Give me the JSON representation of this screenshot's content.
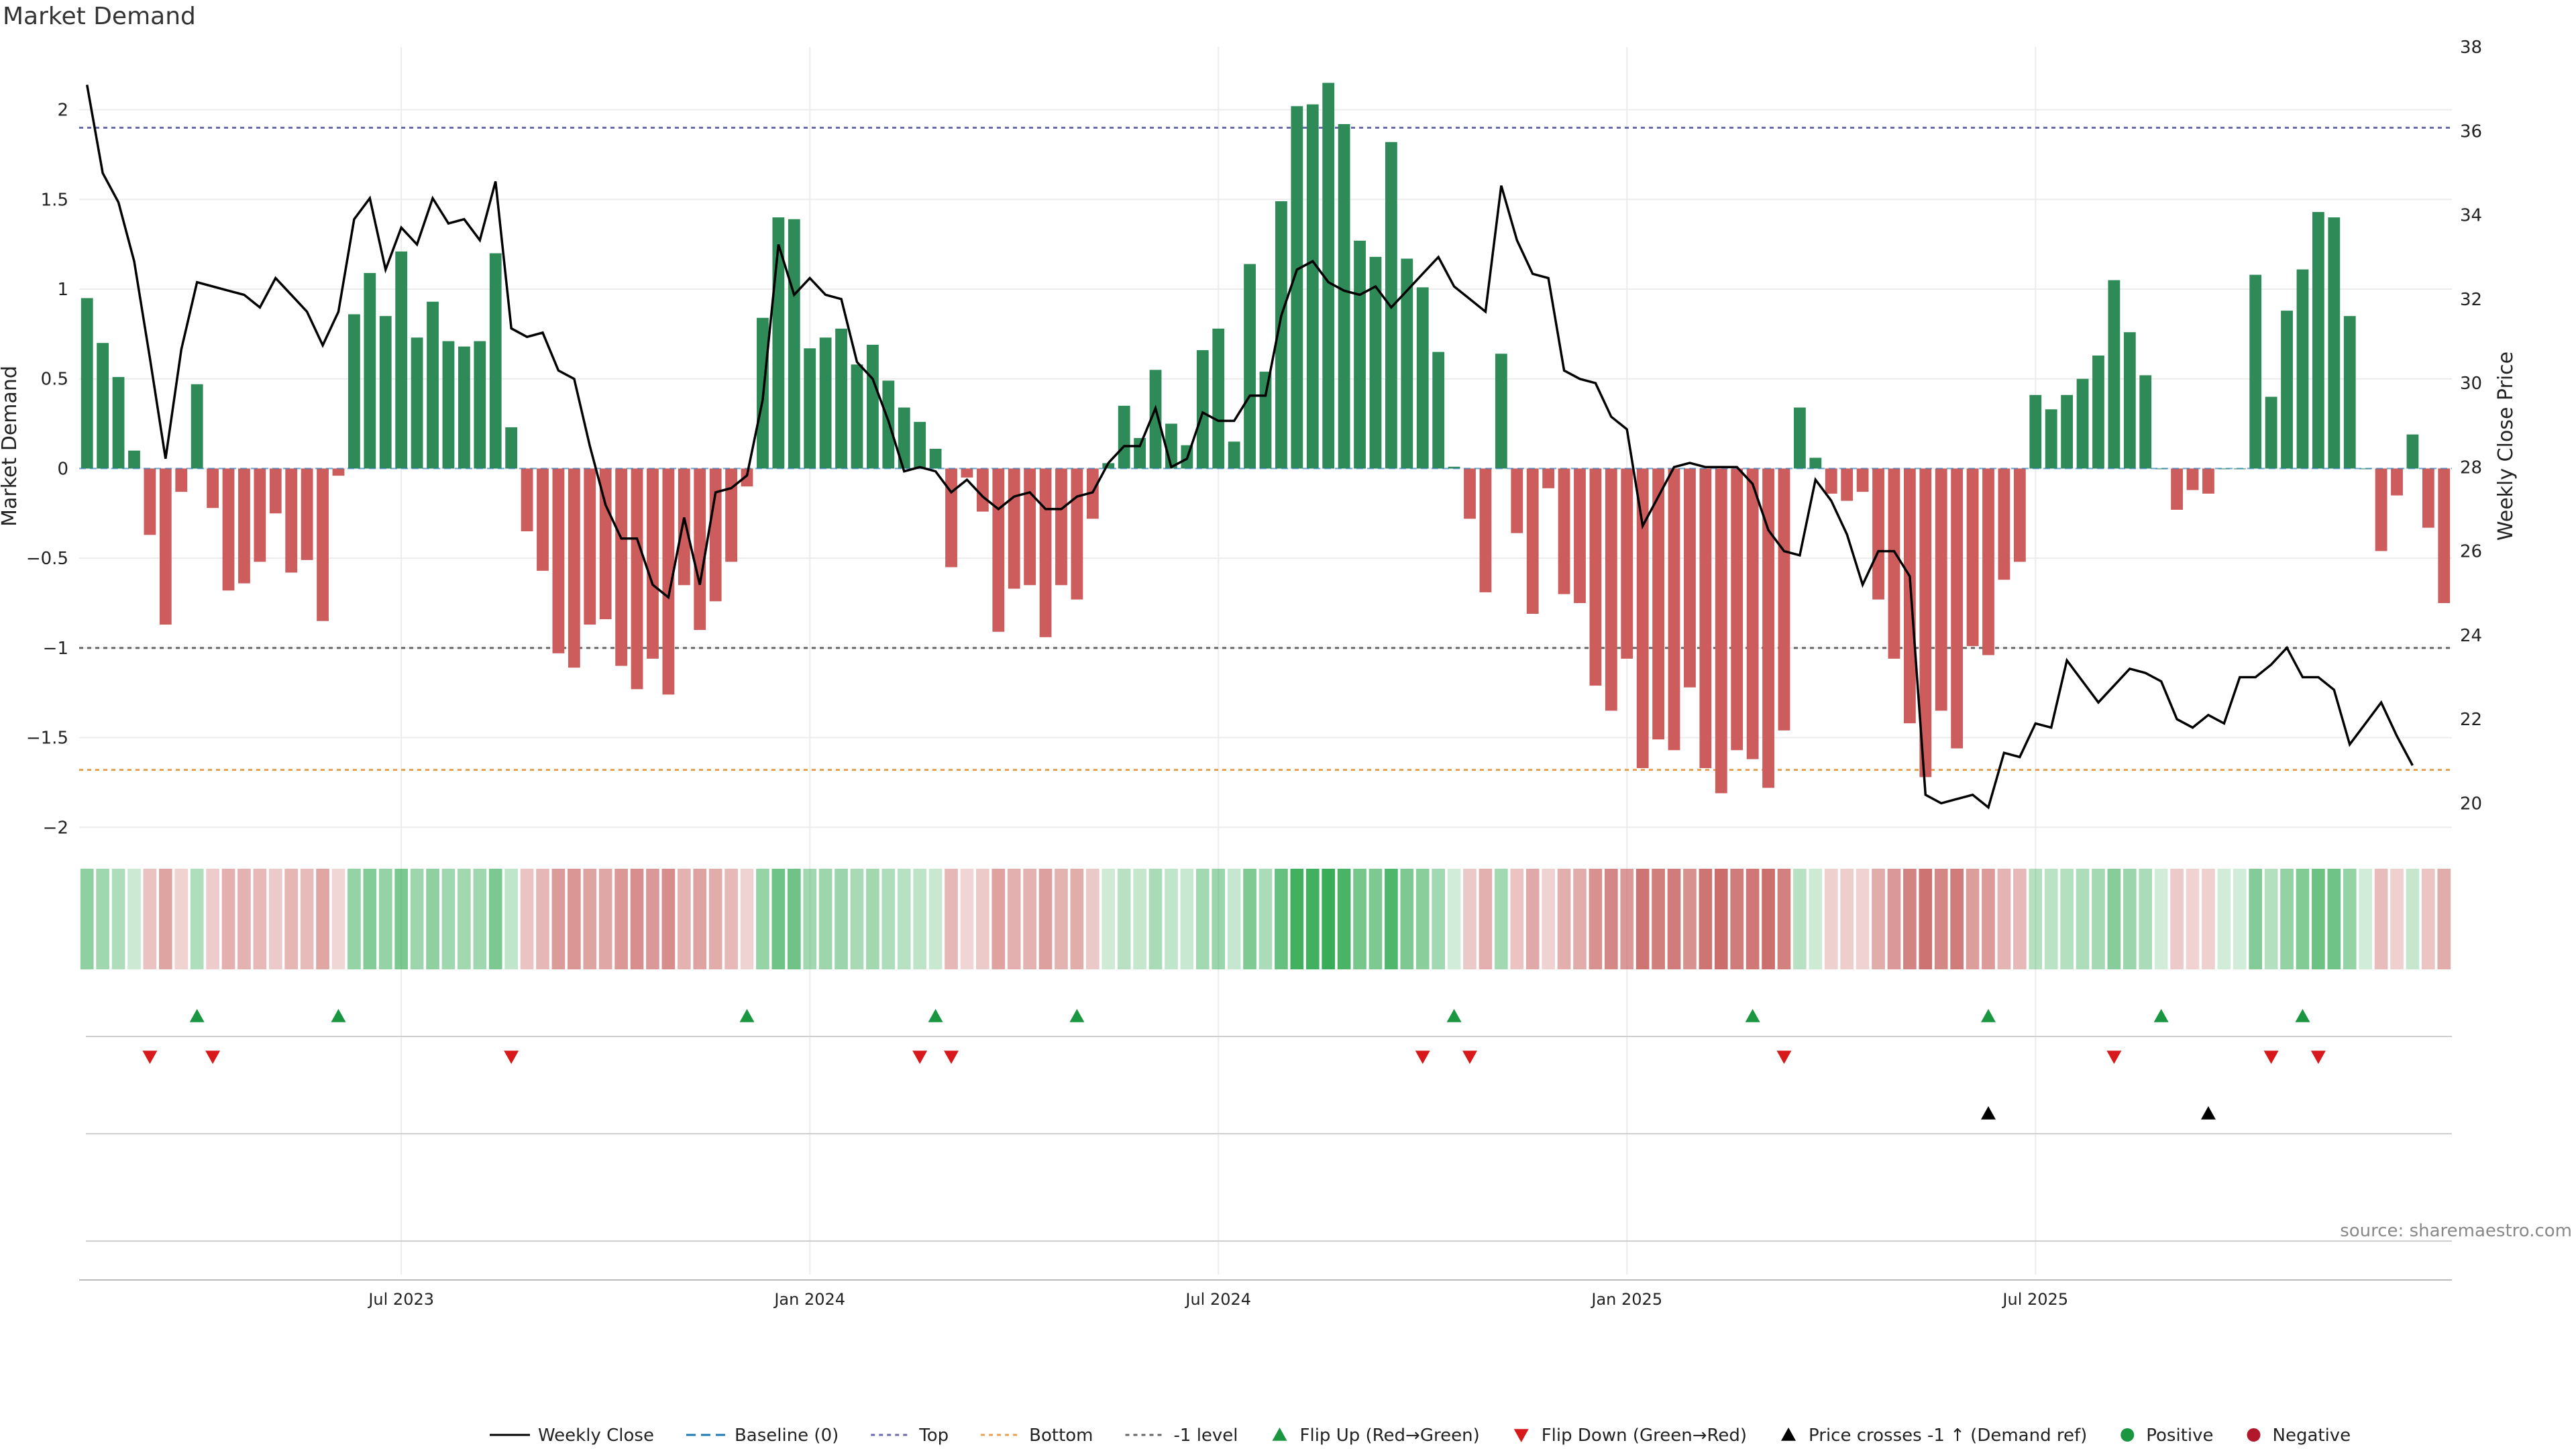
{
  "title": "Market Demand",
  "source": "source: sharemaestro.com",
  "colors": {
    "positive_bar": "#2e8b57",
    "negative_bar": "#cd5c5c",
    "line": "#000000",
    "top_line": "#6a6aa8",
    "bottom_line": "#e8a050",
    "neg1_line": "#666666",
    "flip_up": "#1a9641",
    "flip_down": "#d7191c",
    "cross": "#000000",
    "positive_dot": "#1a9641",
    "negative_dot": "#b2182b"
  },
  "chart_data": {
    "type": "bar",
    "title": "Market Demand",
    "ylabel": "Market Demand",
    "y2label": "Weekly Close Price",
    "ylim": [
      -2.1,
      2.35
    ],
    "y2lim": [
      19,
      38
    ],
    "yticks": [
      "2",
      "1.5",
      "1",
      "0.5",
      "0",
      "−0.5",
      "−1",
      "−1.5",
      "−2"
    ],
    "yticks_values": [
      2,
      1.5,
      1,
      0.5,
      0,
      -0.5,
      -1,
      -1.5,
      -2
    ],
    "y2ticks": [
      "38",
      "36",
      "34",
      "32",
      "30",
      "28",
      "26",
      "24",
      "22",
      "20"
    ],
    "y2ticks_values": [
      38,
      36,
      34,
      32,
      30,
      28,
      26,
      24,
      22,
      20
    ],
    "xticks": [
      "Jul 2023",
      "Jan 2024",
      "Jul 2024",
      "Jan 2025",
      "Jul 2025"
    ],
    "xtick_weeks": [
      20.5,
      46.5,
      72.5,
      98.5,
      124.5
    ],
    "reference_lines": {
      "top": 1.9,
      "bottom": -1.68,
      "neg1": -1.0
    },
    "grid": true,
    "bars": [
      0.95,
      0.7,
      0.51,
      0.1,
      -0.37,
      -0.87,
      -0.13,
      0.47,
      -0.22,
      -0.68,
      -0.64,
      -0.52,
      -0.25,
      -0.58,
      -0.51,
      -0.85,
      -0.04,
      0.86,
      1.09,
      0.85,
      1.21,
      0.73,
      0.93,
      0.71,
      0.68,
      0.71,
      1.2,
      0.23,
      -0.35,
      -0.57,
      -1.03,
      -1.11,
      -0.87,
      -0.84,
      -1.1,
      -1.23,
      -1.06,
      -1.26,
      -0.65,
      -0.9,
      -0.74,
      -0.52,
      -0.1,
      0.84,
      1.4,
      1.39,
      0.67,
      0.73,
      0.78,
      0.58,
      0.69,
      0.49,
      0.34,
      0.26,
      0.11,
      -0.55,
      -0.05,
      -0.24,
      -0.91,
      -0.67,
      -0.65,
      -0.94,
      -0.65,
      -0.73,
      -0.28,
      0.03,
      0.35,
      0.17,
      0.55,
      0.25,
      0.13,
      0.66,
      0.78,
      0.15,
      1.14,
      0.54,
      1.49,
      2.02,
      2.03,
      2.15,
      1.92,
      1.27,
      1.18,
      1.82,
      1.17,
      1.01,
      0.65,
      0.01,
      -0.28,
      -0.69,
      0.64,
      -0.36,
      -0.81,
      -0.11,
      -0.7,
      -0.75,
      -1.21,
      -1.35,
      -1.06,
      -1.67,
      -1.51,
      -1.57,
      -1.22,
      -1.67,
      -1.81,
      -1.57,
      -1.62,
      -1.78,
      -1.46,
      0.34,
      0.06,
      -0.14,
      -0.18,
      -0.13,
      -0.73,
      -1.06,
      -1.42,
      -1.72,
      -1.35,
      -1.56,
      -0.99,
      -1.04,
      -0.62,
      -0.52,
      0.41,
      0.33,
      0.41,
      0.5,
      0.63,
      1.05,
      0.76,
      0.52,
      0.0,
      -0.23,
      -0.12,
      -0.14,
      0.0,
      0.0,
      1.08,
      0.4,
      0.88,
      1.11,
      1.43,
      1.4,
      0.85,
      0.0,
      -0.46,
      -0.15,
      0.19,
      -0.33,
      -0.75
    ],
    "weekly_close": [
      37.1,
      35.0,
      34.3,
      32.9,
      30.6,
      28.2,
      30.8,
      32.4,
      32.3,
      32.2,
      32.1,
      31.8,
      32.5,
      32.1,
      31.7,
      30.9,
      31.7,
      33.9,
      34.4,
      32.7,
      33.7,
      33.3,
      34.4,
      33.8,
      33.9,
      33.4,
      34.8,
      31.3,
      31.1,
      31.2,
      30.3,
      30.1,
      28.5,
      27.1,
      26.3,
      26.3,
      25.2,
      24.9,
      26.8,
      25.2,
      27.4,
      27.5,
      27.8,
      29.6,
      33.3,
      32.1,
      32.5,
      32.1,
      32.0,
      30.5,
      30.1,
      29.1,
      27.9,
      28.0,
      27.9,
      27.4,
      27.7,
      27.3,
      27.0,
      27.3,
      27.4,
      27.0,
      27.0,
      27.3,
      27.4,
      28.1,
      28.5,
      28.5,
      29.4,
      28.0,
      28.2,
      29.3,
      29.1,
      29.1,
      29.7,
      29.7,
      31.6,
      32.7,
      32.9,
      32.4,
      32.2,
      32.1,
      32.3,
      31.8,
      32.2,
      32.6,
      33.0,
      32.3,
      32.0,
      31.7,
      34.7,
      33.4,
      32.6,
      32.5,
      30.3,
      30.1,
      30.0,
      29.2,
      28.9,
      26.6,
      27.3,
      28.0,
      28.1,
      28.0,
      28.0,
      28.0,
      27.6,
      26.5,
      26.0,
      25.9,
      27.7,
      27.2,
      26.4,
      25.2,
      26.0,
      26.0,
      25.4,
      20.2,
      20.0,
      20.1,
      20.2,
      19.9,
      21.2,
      21.1,
      21.9,
      21.8,
      23.4,
      22.9,
      22.4,
      22.8,
      23.2,
      23.1,
      22.9,
      22.0,
      21.8,
      22.1,
      21.9,
      23.0,
      23.0,
      23.3,
      23.7,
      23.0,
      23.0,
      22.7,
      21.4,
      21.9,
      22.4,
      21.6,
      20.9
    ],
    "flip_up_weeks": [
      7,
      16,
      42,
      54,
      63,
      87,
      106,
      121,
      132,
      141
    ],
    "flip_down_weeks": [
      4,
      8,
      27,
      53,
      55,
      85,
      88,
      108,
      129,
      139,
      142
    ],
    "cross_up_weeks": [
      121,
      135
    ]
  },
  "legend": [
    {
      "label": "Weekly Close",
      "kind": "solid-line",
      "color": "#000000"
    },
    {
      "label": "Baseline (0)",
      "kind": "dash-line",
      "color": "#1f77b4"
    },
    {
      "label": "Top",
      "kind": "dot-line",
      "color": "#6a6aa8"
    },
    {
      "label": "Bottom",
      "kind": "dot-line",
      "color": "#e8a050"
    },
    {
      "label": "-1 level",
      "kind": "dot-line",
      "color": "#666666"
    },
    {
      "label": "Flip Up (Red→Green)",
      "kind": "tri-up",
      "color": "#1a9641"
    },
    {
      "label": "Flip Down (Green→Red)",
      "kind": "tri-down",
      "color": "#d7191c"
    },
    {
      "label": "Price crosses -1 ↑ (Demand ref)",
      "kind": "tri-up",
      "color": "#000000"
    },
    {
      "label": "Positive",
      "kind": "dot",
      "color": "#1a9641"
    },
    {
      "label": "Negative",
      "kind": "dot",
      "color": "#b2182b"
    }
  ]
}
